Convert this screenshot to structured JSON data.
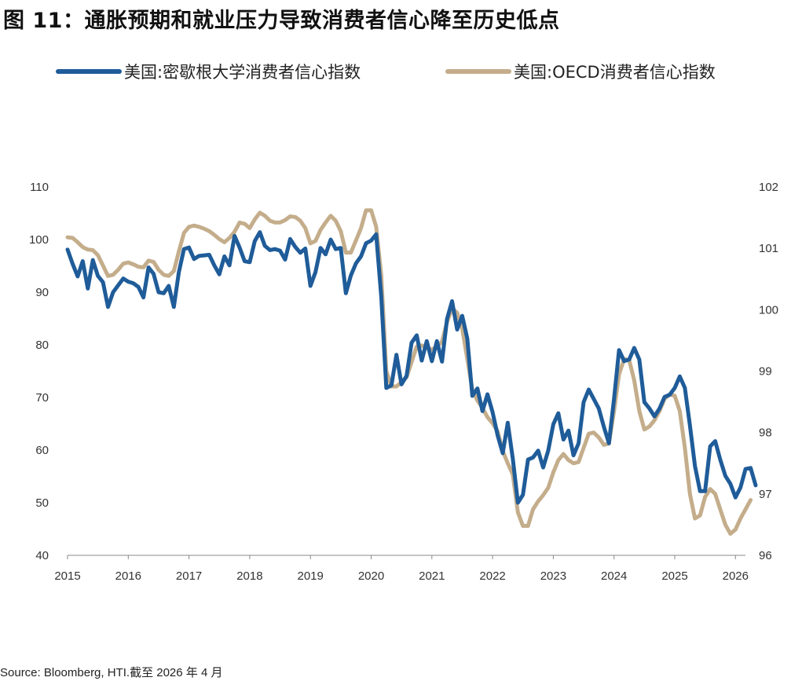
{
  "title": "图 11：通胀预期和就业压力导致消费者信心降至历史低点",
  "source": "Source: Bloomberg, HTI.截至 2026 年 4 月",
  "chart_data": {
    "type": "line",
    "x_labels": [
      "2015",
      "2016",
      "2017",
      "2018",
      "2019",
      "2020",
      "2021",
      "2022",
      "2023",
      "2024",
      "2025",
      "2026"
    ],
    "x_start": 2015.0,
    "x_step": 0.08333,
    "y_left": {
      "range": [
        40,
        110
      ],
      "ticks": [
        "40",
        "50",
        "60",
        "70",
        "80",
        "90",
        "100",
        "110"
      ]
    },
    "y_right": {
      "range": [
        96,
        102
      ],
      "ticks": [
        "96",
        "97",
        "98",
        "99",
        "100",
        "101",
        "102"
      ]
    },
    "legend_position": "top",
    "series": [
      {
        "name": "美国:密歇根大学消费者信心指数",
        "axis": "left",
        "color": "#1F5C99",
        "values": [
          98.1,
          95.4,
          93.0,
          95.9,
          90.7,
          96.1,
          93.1,
          91.9,
          87.2,
          90.0,
          91.3,
          92.6,
          92.0,
          91.7,
          91.0,
          89.0,
          94.7,
          93.5,
          90.0,
          89.8,
          91.2,
          87.2,
          93.8,
          98.2,
          98.5,
          96.3,
          96.9,
          97.0,
          97.1,
          95.1,
          93.4,
          96.8,
          95.1,
          100.7,
          98.5,
          95.9,
          95.7,
          99.7,
          101.4,
          98.8,
          98.0,
          98.2,
          97.9,
          96.2,
          100.1,
          98.6,
          97.5,
          98.3,
          91.2,
          93.8,
          98.4,
          97.2,
          100.0,
          98.2,
          98.4,
          89.8,
          93.2,
          95.5,
          96.8,
          99.3,
          99.8,
          101.0,
          89.1,
          71.8,
          72.3,
          78.1,
          72.5,
          74.1,
          80.4,
          81.8,
          77.0,
          80.7,
          76.9,
          80.7,
          76.8,
          84.9,
          88.3,
          82.9,
          85.5,
          81.2,
          70.3,
          71.7,
          67.4,
          70.6,
          67.2,
          62.8,
          59.4,
          65.2,
          58.4,
          50.0,
          51.5,
          58.2,
          58.6,
          59.9,
          56.7,
          59.9,
          64.9,
          67.0,
          62.0,
          63.7,
          59.0,
          61.3,
          69.1,
          71.5,
          69.7,
          67.9,
          64.4,
          61.3,
          69.7,
          79.0,
          76.9,
          77.2,
          79.4,
          77.2,
          69.1,
          67.9,
          66.4,
          67.9,
          70.1,
          70.5,
          71.8,
          74.0,
          71.8,
          64.7,
          57.0,
          52.2,
          52.2,
          60.7,
          61.7,
          58.2,
          55.1,
          53.6,
          51.0,
          52.9,
          56.4,
          56.6,
          53.3
        ]
      },
      {
        "name": "美国:OECD消费者信心指数",
        "axis": "right",
        "color": "#C4AD8B",
        "values": [
          101.18,
          101.17,
          101.1,
          101.02,
          100.98,
          100.97,
          100.89,
          100.72,
          100.55,
          100.57,
          100.65,
          100.75,
          100.77,
          100.74,
          100.7,
          100.69,
          100.8,
          100.78,
          100.65,
          100.57,
          100.55,
          100.63,
          100.95,
          101.25,
          101.35,
          101.37,
          101.35,
          101.32,
          101.28,
          101.22,
          101.15,
          101.1,
          101.17,
          101.27,
          101.42,
          101.4,
          101.33,
          101.47,
          101.58,
          101.53,
          101.45,
          101.42,
          101.42,
          101.46,
          101.52,
          101.51,
          101.45,
          101.33,
          101.08,
          101.12,
          101.3,
          101.42,
          101.53,
          101.45,
          101.28,
          100.93,
          100.93,
          101.13,
          101.33,
          101.62,
          101.62,
          101.35,
          100.55,
          99.0,
          98.75,
          98.75,
          98.82,
          98.9,
          99.15,
          99.4,
          99.42,
          99.38,
          99.35,
          99.4,
          99.48,
          99.8,
          100.02,
          99.95,
          99.7,
          99.2,
          98.7,
          98.52,
          98.4,
          98.25,
          98.15,
          98.02,
          97.7,
          97.5,
          97.32,
          96.7,
          96.48,
          96.48,
          96.75,
          96.88,
          96.98,
          97.1,
          97.35,
          97.55,
          97.65,
          97.55,
          97.5,
          97.52,
          97.75,
          97.98,
          98.0,
          97.92,
          97.8,
          97.82,
          98.35,
          98.95,
          99.2,
          99.18,
          98.85,
          98.35,
          98.05,
          98.1,
          98.2,
          98.35,
          98.55,
          98.62,
          98.6,
          98.35,
          97.75,
          97.0,
          96.6,
          96.65,
          96.95,
          97.08,
          97.0,
          96.75,
          96.5,
          96.35,
          96.42,
          96.6,
          96.75,
          96.9
        ]
      }
    ]
  }
}
